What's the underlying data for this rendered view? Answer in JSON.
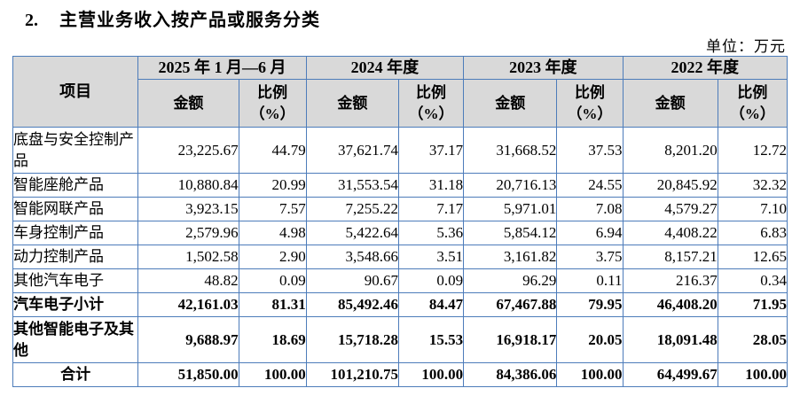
{
  "page": {
    "section_number": "2.",
    "section_title": "主营业务收入按产品或服务分类",
    "unit_label": "单位：万元"
  },
  "colors": {
    "table_border": "#4d7cba",
    "header_background": "#d9d9d9",
    "text": "#000000"
  },
  "table": {
    "item_header": "项目",
    "amount_header": "金额",
    "ratio_header": "比例\n（%）",
    "periods": [
      "2025 年 1 月—6 月",
      "2024 年度",
      "2023 年度",
      "2022 年度"
    ],
    "rows": [
      {
        "label": "底盘与安全控制产品",
        "bold": false,
        "tall": true,
        "label_align": "left",
        "values": [
          "23,225.67",
          "44.79",
          "37,621.74",
          "37.17",
          "31,668.52",
          "37.53",
          "8,201.20",
          "12.72"
        ]
      },
      {
        "label": "智能座舱产品",
        "bold": false,
        "tall": false,
        "label_align": "left",
        "values": [
          "10,880.84",
          "20.99",
          "31,553.54",
          "31.18",
          "20,716.13",
          "24.55",
          "20,845.92",
          "32.32"
        ]
      },
      {
        "label": "智能网联产品",
        "bold": false,
        "tall": false,
        "label_align": "left",
        "values": [
          "3,923.15",
          "7.57",
          "7,255.22",
          "7.17",
          "5,971.01",
          "7.08",
          "4,579.27",
          "7.10"
        ]
      },
      {
        "label": "车身控制产品",
        "bold": false,
        "tall": false,
        "label_align": "left",
        "values": [
          "2,579.96",
          "4.98",
          "5,422.64",
          "5.36",
          "5,854.12",
          "6.94",
          "4,408.22",
          "6.83"
        ]
      },
      {
        "label": "动力控制产品",
        "bold": false,
        "tall": false,
        "label_align": "left",
        "values": [
          "1,502.58",
          "2.90",
          "3,548.66",
          "3.51",
          "3,161.82",
          "3.75",
          "8,157.21",
          "12.65"
        ]
      },
      {
        "label": "其他汽车电子",
        "bold": false,
        "tall": false,
        "label_align": "left",
        "values": [
          "48.82",
          "0.09",
          "90.67",
          "0.09",
          "96.29",
          "0.11",
          "216.37",
          "0.34"
        ]
      },
      {
        "label": "汽车电子小计",
        "bold": true,
        "tall": false,
        "label_align": "left",
        "values": [
          "42,161.03",
          "81.31",
          "85,492.46",
          "84.47",
          "67,467.88",
          "79.95",
          "46,408.20",
          "71.95"
        ]
      },
      {
        "label": "其他智能电子及其他",
        "bold": true,
        "tall": true,
        "label_align": "left",
        "values": [
          "9,688.97",
          "18.69",
          "15,718.28",
          "15.53",
          "16,918.17",
          "20.05",
          "18,091.48",
          "28.05"
        ]
      },
      {
        "label": "合计",
        "bold": true,
        "tall": false,
        "label_align": "center",
        "values": [
          "51,850.00",
          "100.00",
          "101,210.75",
          "100.00",
          "84,386.06",
          "100.00",
          "64,499.67",
          "100.00"
        ]
      }
    ]
  }
}
